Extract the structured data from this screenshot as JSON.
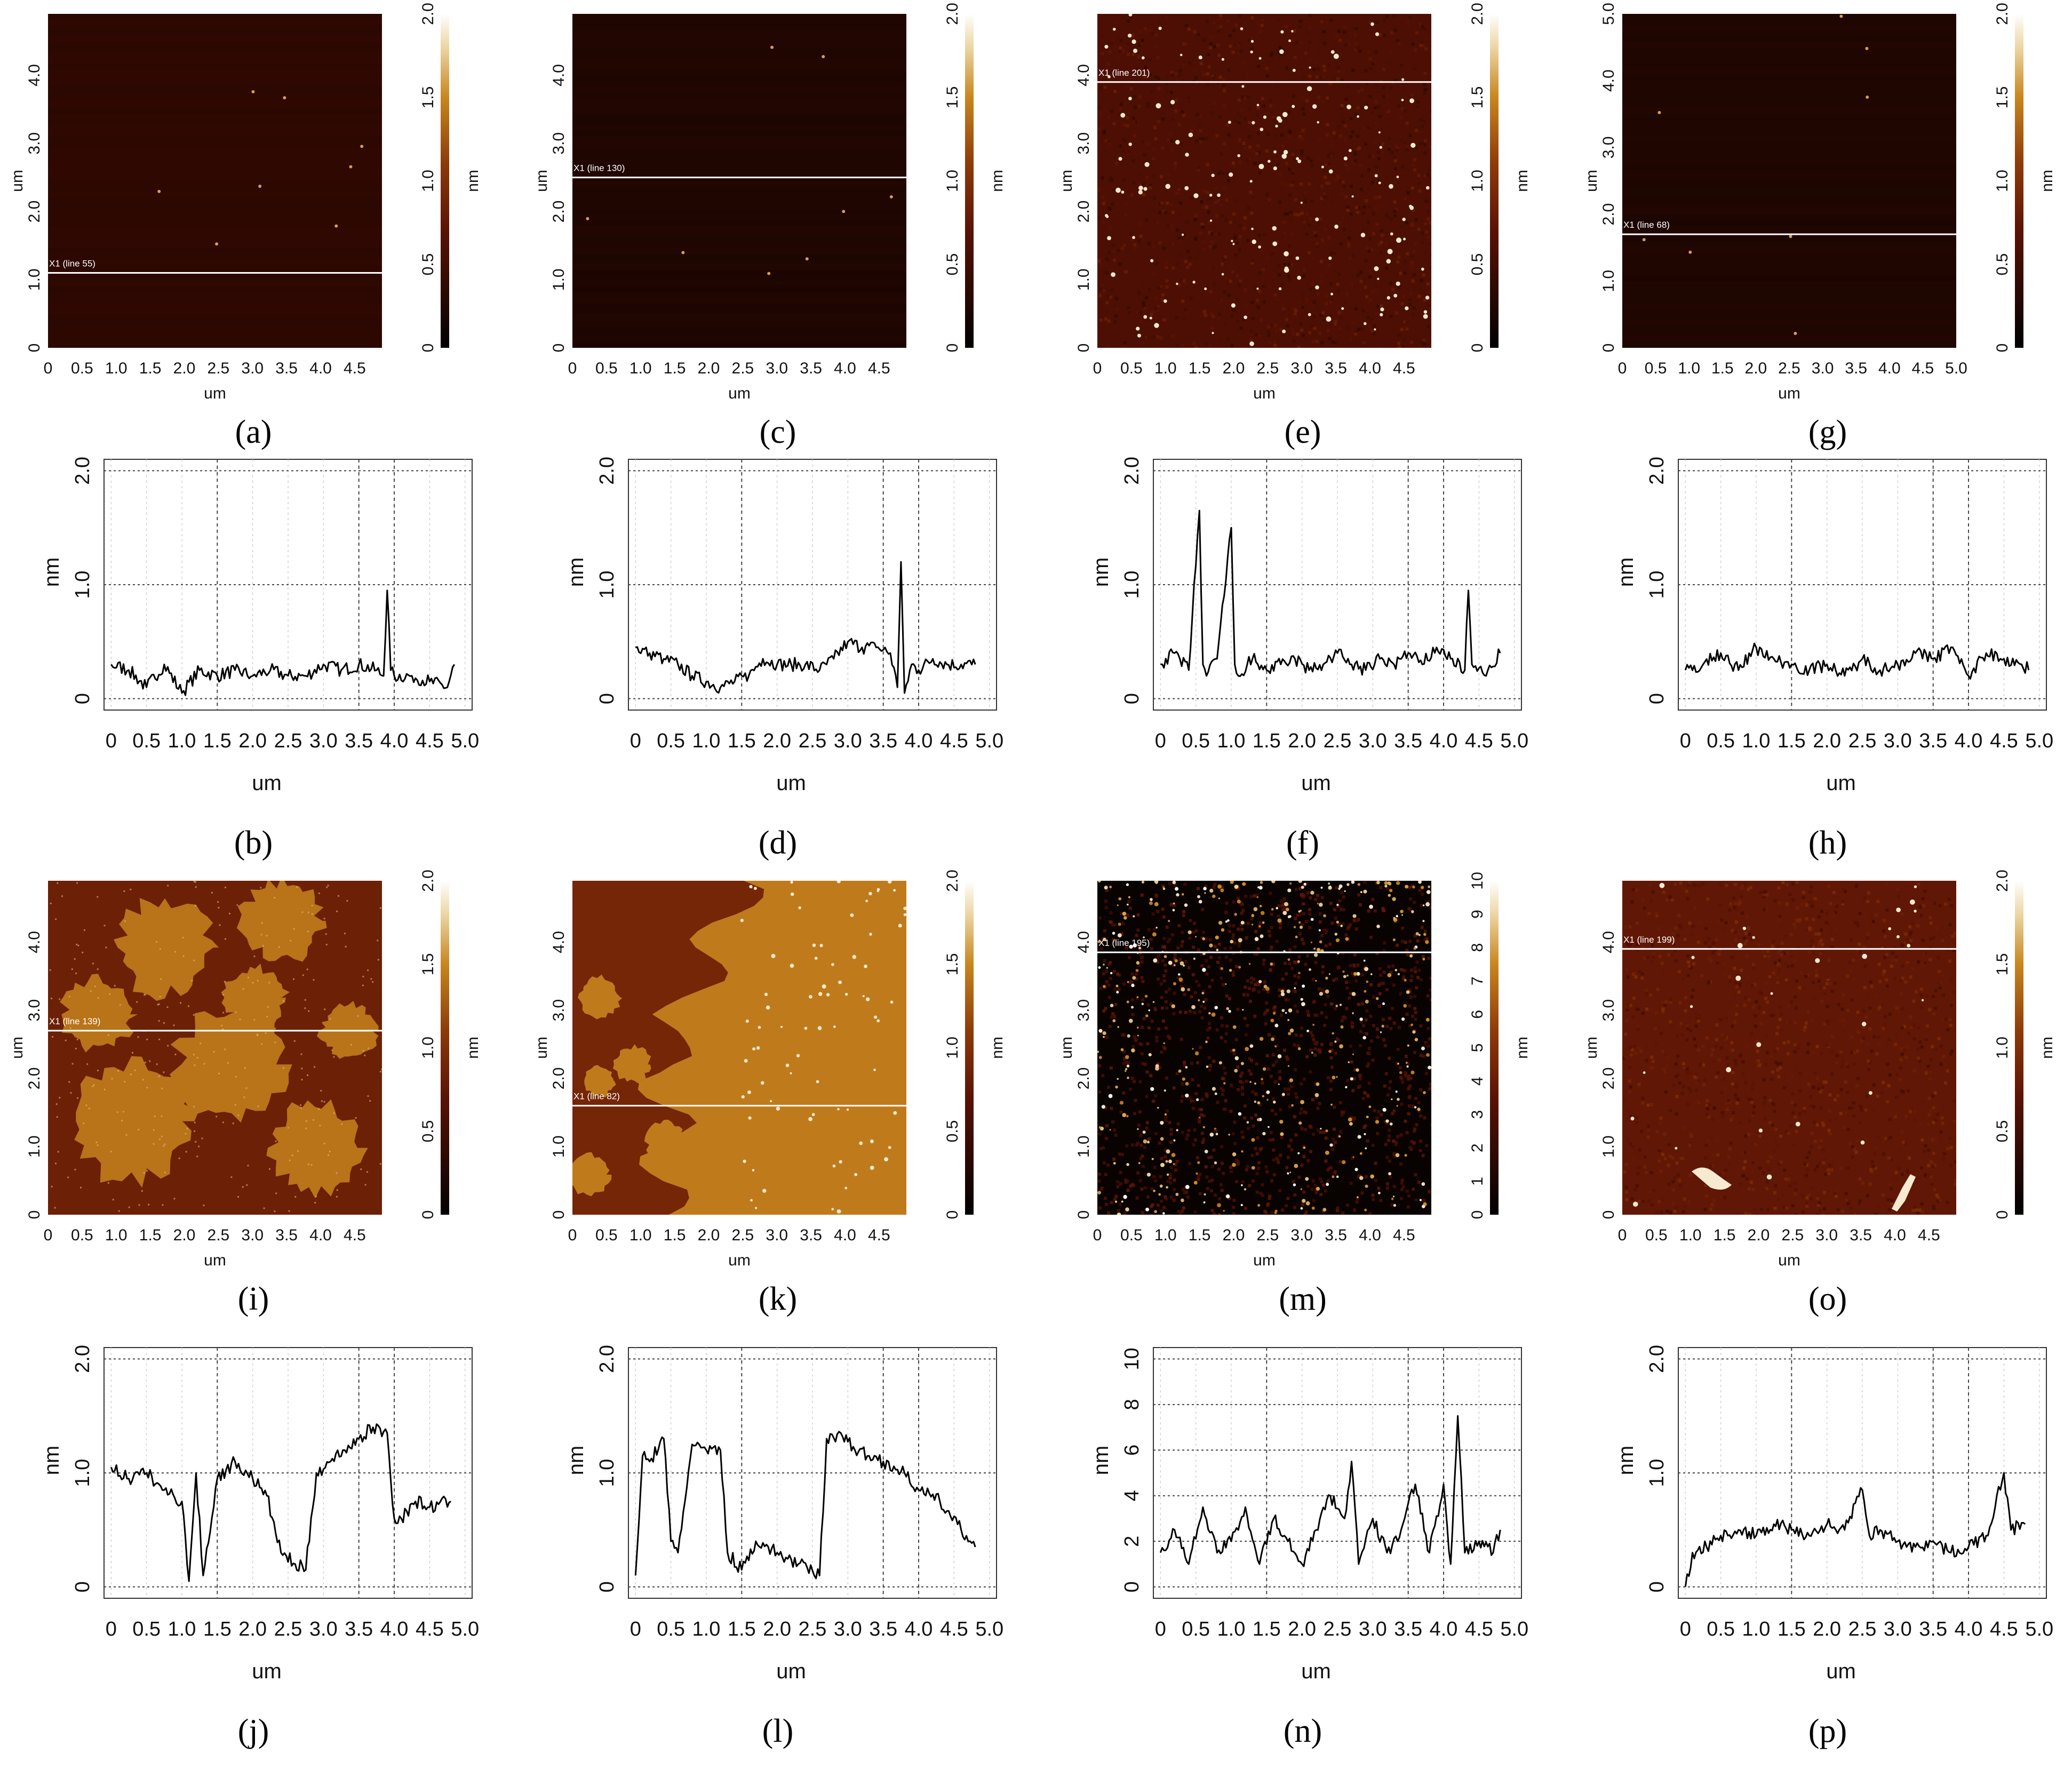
{
  "colors": {
    "afm_low": "#000000",
    "afm_mid": "#7a1f07",
    "afm_high": "#ffffff",
    "line": "#000000",
    "grid": "#555555"
  },
  "chart_data": [
    {
      "type": "heatmap",
      "panel": "a",
      "caption": "(a)",
      "xlabel": "um",
      "ylabel": "um",
      "colorbar_unit": "nm",
      "x_ticks": [
        "0",
        "0.5",
        "1.0",
        "1.5",
        "2.0",
        "2.5",
        "3.0",
        "3.5",
        "4.0",
        "4.5"
      ],
      "y_ticks": [
        "0",
        "1.0",
        "2.0",
        "3.0",
        "4.0"
      ],
      "colorbar_ticks": [
        "0",
        "0.5",
        "1.0",
        "1.5",
        "2.0"
      ],
      "zrange": [
        0,
        2
      ],
      "scan_line_label": "X1 (line 55)",
      "scan_line_y": 1.1,
      "texture": "smooth",
      "mean_height": 0.35
    },
    {
      "type": "line",
      "panel": "b",
      "caption": "(b)",
      "xlabel": "um",
      "ylabel": "nm",
      "x_ticks": [
        "0",
        "0.5",
        "1.0",
        "1.5",
        "2.0",
        "2.5",
        "3.0",
        "3.5",
        "4.0",
        "4.5",
        "5.0"
      ],
      "y_ticks": [
        "0",
        "1.0",
        "2.0"
      ],
      "ylim": [
        0,
        2.0
      ],
      "xlim": [
        -0.1,
        5.1
      ],
      "x_gridlines": [
        1.5,
        3.5,
        4.0
      ],
      "x": [
        0,
        0.25,
        0.5,
        0.75,
        1.0,
        1.25,
        1.5,
        1.75,
        2.0,
        2.25,
        2.5,
        2.75,
        3.0,
        3.25,
        3.5,
        3.75,
        3.85,
        3.9,
        3.95,
        4.0,
        4.25,
        4.5,
        4.75,
        4.85
      ],
      "y": [
        0.3,
        0.25,
        0.1,
        0.3,
        0.05,
        0.25,
        0.2,
        0.25,
        0.2,
        0.25,
        0.2,
        0.2,
        0.3,
        0.25,
        0.3,
        0.25,
        0.2,
        0.95,
        0.25,
        0.2,
        0.2,
        0.15,
        0.1,
        0.3
      ]
    },
    {
      "type": "heatmap",
      "panel": "c",
      "caption": "(c)",
      "xlabel": "um",
      "ylabel": "um",
      "colorbar_unit": "nm",
      "x_ticks": [
        "0",
        "0.5",
        "1.0",
        "1.5",
        "2.0",
        "2.5",
        "3.0",
        "3.5",
        "4.0",
        "4.5"
      ],
      "y_ticks": [
        "0",
        "1.0",
        "2.0",
        "3.0",
        "4.0"
      ],
      "colorbar_ticks": [
        "0",
        "0.5",
        "1.0",
        "1.5",
        "2.0"
      ],
      "zrange": [
        0,
        2
      ],
      "scan_line_label": "X1 (line 130)",
      "scan_line_y": 2.5,
      "texture": "smooth",
      "mean_height": 0.25
    },
    {
      "type": "line",
      "panel": "d",
      "caption": "(d)",
      "xlabel": "um",
      "ylabel": "nm",
      "x_ticks": [
        "0",
        "0.5",
        "1.0",
        "1.5",
        "2.0",
        "2.5",
        "3.0",
        "3.5",
        "4.0",
        "4.5",
        "5.0"
      ],
      "y_ticks": [
        "0",
        "1.0",
        "2.0"
      ],
      "ylim": [
        0,
        2.0
      ],
      "xlim": [
        -0.1,
        5.1
      ],
      "x_gridlines": [
        1.5,
        3.5,
        4.0
      ],
      "x": [
        0,
        0.2,
        0.4,
        0.6,
        0.8,
        1.0,
        1.2,
        1.4,
        1.6,
        1.8,
        2.0,
        2.2,
        2.4,
        2.6,
        2.8,
        3.0,
        3.2,
        3.4,
        3.6,
        3.7,
        3.75,
        3.8,
        3.9,
        4.0,
        4.2,
        4.4,
        4.6,
        4.8
      ],
      "y": [
        0.45,
        0.4,
        0.35,
        0.3,
        0.2,
        0.15,
        0.1,
        0.15,
        0.2,
        0.35,
        0.3,
        0.3,
        0.3,
        0.25,
        0.35,
        0.5,
        0.45,
        0.45,
        0.4,
        0.1,
        1.2,
        0.05,
        0.3,
        0.25,
        0.35,
        0.3,
        0.3,
        0.3
      ]
    },
    {
      "type": "heatmap",
      "panel": "e",
      "caption": "(e)",
      "xlabel": "um",
      "ylabel": "um",
      "colorbar_unit": "nm",
      "x_ticks": [
        "0",
        "0.5",
        "1.0",
        "1.5",
        "2.0",
        "2.5",
        "3.0",
        "3.5",
        "4.0",
        "4.5"
      ],
      "y_ticks": [
        "0",
        "1.0",
        "2.0",
        "3.0",
        "4.0"
      ],
      "colorbar_ticks": [
        "0",
        "0.5",
        "1.0",
        "1.5",
        "2.0"
      ],
      "zrange": [
        0,
        2
      ],
      "scan_line_label": "X1 (line 201)",
      "scan_line_y": 3.9,
      "texture": "grainy",
      "mean_height": 0.6
    },
    {
      "type": "line",
      "panel": "f",
      "caption": "(f)",
      "xlabel": "um",
      "ylabel": "nm",
      "x_ticks": [
        "0",
        "0.5",
        "1.0",
        "1.5",
        "2.0",
        "2.5",
        "3.0",
        "3.5",
        "4.0",
        "4.5",
        "5.0"
      ],
      "y_ticks": [
        "0",
        "1.0",
        "2.0"
      ],
      "ylim": [
        0,
        2.0
      ],
      "xlim": [
        -0.1,
        5.1
      ],
      "x_gridlines": [
        1.5,
        3.5,
        4.0
      ],
      "x": [
        0,
        0.2,
        0.4,
        0.55,
        0.6,
        0.65,
        0.8,
        1.0,
        1.05,
        1.1,
        1.3,
        1.5,
        1.7,
        1.9,
        2.1,
        2.3,
        2.5,
        2.7,
        2.9,
        3.1,
        3.3,
        3.5,
        3.7,
        3.9,
        4.1,
        4.3,
        4.35,
        4.4,
        4.6,
        4.8
      ],
      "y": [
        0.3,
        0.4,
        0.25,
        1.65,
        0.3,
        0.2,
        0.35,
        1.5,
        0.3,
        0.2,
        0.35,
        0.25,
        0.3,
        0.35,
        0.25,
        0.3,
        0.4,
        0.3,
        0.25,
        0.35,
        0.3,
        0.4,
        0.3,
        0.45,
        0.35,
        0.25,
        0.95,
        0.3,
        0.2,
        0.4
      ]
    },
    {
      "type": "heatmap",
      "panel": "g",
      "caption": "(g)",
      "xlabel": "um",
      "ylabel": "um",
      "colorbar_unit": "nm",
      "x_ticks": [
        "0",
        "0.5",
        "1.0",
        "1.5",
        "2.0",
        "2.5",
        "3.0",
        "3.5",
        "4.0",
        "4.5",
        "5.0"
      ],
      "y_ticks": [
        "0",
        "1.0",
        "2.0",
        "3.0",
        "4.0",
        "5.0"
      ],
      "colorbar_ticks": [
        "0",
        "0.5",
        "1.0",
        "1.5",
        "2.0"
      ],
      "zrange": [
        0,
        2
      ],
      "scan_line_label": "X1 (line 68)",
      "scan_line_y": 1.7,
      "texture": "smooth",
      "mean_height": 0.25
    },
    {
      "type": "line",
      "panel": "h",
      "caption": "(h)",
      "xlabel": "um",
      "ylabel": "nm",
      "x_ticks": [
        "0",
        "0.5",
        "1.0",
        "1.5",
        "2.0",
        "2.5",
        "3.0",
        "3.5",
        "4.0",
        "4.5",
        "5.0"
      ],
      "y_ticks": [
        "0",
        "1.0",
        "2.0"
      ],
      "ylim": [
        0,
        2.0
      ],
      "xlim": [
        -0.1,
        5.1
      ],
      "x_gridlines": [
        1.5,
        3.5,
        4.0
      ],
      "x": [
        0,
        0.25,
        0.5,
        0.75,
        1.0,
        1.25,
        1.5,
        1.75,
        2.0,
        2.25,
        2.5,
        2.75,
        3.0,
        3.25,
        3.5,
        3.75,
        4.0,
        4.25,
        4.5,
        4.75,
        4.85
      ],
      "y": [
        0.25,
        0.3,
        0.4,
        0.25,
        0.45,
        0.35,
        0.3,
        0.25,
        0.3,
        0.2,
        0.35,
        0.25,
        0.3,
        0.4,
        0.35,
        0.45,
        0.2,
        0.4,
        0.35,
        0.3,
        0.25
      ]
    },
    {
      "type": "heatmap",
      "panel": "i",
      "caption": "(i)",
      "xlabel": "um",
      "ylabel": "um",
      "colorbar_unit": "nm",
      "x_ticks": [
        "0",
        "0.5",
        "1.0",
        "1.5",
        "2.0",
        "2.5",
        "3.0",
        "3.5",
        "4.0",
        "4.5"
      ],
      "y_ticks": [
        "0",
        "1.0",
        "2.0",
        "3.0",
        "4.0"
      ],
      "colorbar_ticks": [
        "0",
        "0.5",
        "1.0",
        "1.5",
        "2.0"
      ],
      "zrange": [
        0,
        2
      ],
      "scan_line_label": "X1 (line 139)",
      "scan_line_y": 2.7,
      "texture": "islands",
      "mean_height": 1.0
    },
    {
      "type": "line",
      "panel": "j",
      "caption": "(j)",
      "xlabel": "um",
      "ylabel": "nm",
      "x_ticks": [
        "0",
        "0.5",
        "1.0",
        "1.5",
        "2.0",
        "2.5",
        "3.0",
        "3.5",
        "4.0",
        "4.5",
        "5.0"
      ],
      "y_ticks": [
        "0",
        "1.0",
        "2.0"
      ],
      "ylim": [
        0,
        2.0
      ],
      "xlim": [
        -0.1,
        5.1
      ],
      "x_gridlines": [
        1.5,
        3.5,
        4.0
      ],
      "x": [
        0,
        0.25,
        0.5,
        0.75,
        1.0,
        1.1,
        1.2,
        1.3,
        1.5,
        1.75,
        2.0,
        2.2,
        2.4,
        2.6,
        2.75,
        2.9,
        3.1,
        3.3,
        3.5,
        3.7,
        3.9,
        4.0,
        4.1,
        4.3,
        4.5,
        4.8
      ],
      "y": [
        1.05,
        0.95,
        1.0,
        0.85,
        0.75,
        0.05,
        1.0,
        0.1,
        0.95,
        1.1,
        0.95,
        0.8,
        0.3,
        0.2,
        0.15,
        1.0,
        1.1,
        1.2,
        1.3,
        1.4,
        1.35,
        0.6,
        0.6,
        0.75,
        0.7,
        0.75
      ]
    },
    {
      "type": "heatmap",
      "panel": "k",
      "caption": "(k)",
      "xlabel": "um",
      "ylabel": "um",
      "colorbar_unit": "nm",
      "x_ticks": [
        "0",
        "0.5",
        "1.0",
        "1.5",
        "2.0",
        "2.5",
        "3.0",
        "3.5",
        "4.0",
        "4.5"
      ],
      "y_ticks": [
        "0",
        "1.0",
        "2.0",
        "3.0",
        "4.0"
      ],
      "colorbar_ticks": [
        "0",
        "0.5",
        "1.0",
        "1.5",
        "2.0"
      ],
      "zrange": [
        0,
        2
      ],
      "scan_line_label": "X1 (line 82)",
      "scan_line_y": 1.6,
      "texture": "terraces",
      "mean_height": 1.0
    },
    {
      "type": "line",
      "panel": "l",
      "caption": "(l)",
      "xlabel": "um",
      "ylabel": "nm",
      "x_ticks": [
        "0",
        "0.5",
        "1.0",
        "1.5",
        "2.0",
        "2.5",
        "3.0",
        "3.5",
        "4.0",
        "4.5",
        "5.0"
      ],
      "y_ticks": [
        "0",
        "1.0",
        "2.0"
      ],
      "ylim": [
        0,
        2.0
      ],
      "xlim": [
        -0.1,
        5.1
      ],
      "x_gridlines": [
        1.5,
        3.5,
        4.0
      ],
      "x": [
        0,
        0.1,
        0.2,
        0.4,
        0.5,
        0.6,
        0.8,
        1.0,
        1.2,
        1.3,
        1.5,
        1.7,
        2.0,
        2.3,
        2.6,
        2.7,
        2.9,
        3.1,
        3.3,
        3.5,
        3.8,
        4.0,
        4.3,
        4.6,
        4.8
      ],
      "y": [
        0.1,
        1.15,
        1.1,
        1.3,
        0.4,
        0.3,
        1.25,
        1.2,
        1.2,
        0.3,
        0.15,
        0.4,
        0.3,
        0.2,
        0.1,
        1.3,
        1.35,
        1.2,
        1.15,
        1.1,
        1.0,
        0.85,
        0.75,
        0.5,
        0.35
      ]
    },
    {
      "type": "heatmap",
      "panel": "m",
      "caption": "(m)",
      "xlabel": "um",
      "ylabel": "um",
      "colorbar_unit": "nm",
      "x_ticks": [
        "0",
        "0.5",
        "1.0",
        "1.5",
        "2.0",
        "2.5",
        "3.0",
        "3.5",
        "4.0",
        "4.5"
      ],
      "y_ticks": [
        "0",
        "1.0",
        "2.0",
        "3.0",
        "4.0"
      ],
      "colorbar_ticks": [
        "0",
        "1",
        "2",
        "3",
        "4",
        "5",
        "6",
        "7",
        "8",
        "9",
        "10"
      ],
      "zrange": [
        0,
        10
      ],
      "scan_line_label": "X1 (line 195)",
      "scan_line_y": 3.85,
      "texture": "particles",
      "mean_height": 0.3
    },
    {
      "type": "line",
      "panel": "n",
      "caption": "(n)",
      "xlabel": "um",
      "ylabel": "nm",
      "x_ticks": [
        "0",
        "0.5",
        "1.0",
        "1.5",
        "2.0",
        "2.5",
        "3.0",
        "3.5",
        "4.0",
        "4.5",
        "5.0"
      ],
      "y_ticks": [
        "0",
        "2",
        "4",
        "6",
        "8",
        "10"
      ],
      "ylim": [
        0,
        10
      ],
      "xlim": [
        -0.1,
        5.1
      ],
      "x_gridlines": [
        1.5,
        3.5,
        4.0
      ],
      "x": [
        0,
        0.2,
        0.4,
        0.6,
        0.8,
        1.0,
        1.2,
        1.4,
        1.6,
        1.8,
        2.0,
        2.2,
        2.4,
        2.6,
        2.7,
        2.8,
        3.0,
        3.2,
        3.4,
        3.6,
        3.8,
        4.0,
        4.1,
        4.2,
        4.3,
        4.5,
        4.7,
        4.8
      ],
      "y": [
        1.5,
        2.5,
        1.0,
        3.5,
        1.5,
        2.0,
        3.5,
        1.0,
        3.0,
        2.0,
        1.0,
        2.5,
        4.0,
        3.0,
        5.5,
        1.0,
        3.0,
        1.5,
        2.5,
        4.5,
        1.5,
        4.5,
        1.0,
        7.5,
        1.5,
        2.0,
        1.5,
        2.5
      ]
    },
    {
      "type": "heatmap",
      "panel": "o",
      "caption": "(o)",
      "xlabel": "um",
      "ylabel": "um",
      "colorbar_unit": "nm",
      "x_ticks": [
        "0",
        "0.5",
        "1.0",
        "1.5",
        "2.0",
        "2.5",
        "3.0",
        "3.5",
        "4.0",
        "4.5"
      ],
      "y_ticks": [
        "0",
        "1.0",
        "2.0",
        "3.0",
        "4.0"
      ],
      "colorbar_ticks": [
        "0",
        "0.5",
        "1.0",
        "1.5",
        "2.0"
      ],
      "zrange": [
        0,
        2
      ],
      "scan_line_label": "X1 (line 199)",
      "scan_line_y": 3.9,
      "texture": "grainy-light",
      "mean_height": 0.75
    },
    {
      "type": "line",
      "panel": "p",
      "caption": "(p)",
      "xlabel": "um",
      "ylabel": "nm",
      "x_ticks": [
        "0",
        "0.5",
        "1.0",
        "1.5",
        "2.0",
        "2.5",
        "3.0",
        "3.5",
        "4.0",
        "4.5",
        "5.0"
      ],
      "y_ticks": [
        "0",
        "1.0",
        "2.0"
      ],
      "ylim": [
        0,
        2.0
      ],
      "xlim": [
        -0.1,
        5.1
      ],
      "x_gridlines": [
        1.5,
        3.5,
        4.0
      ],
      "x": [
        0,
        0.1,
        0.3,
        0.5,
        0.75,
        1.0,
        1.25,
        1.5,
        1.75,
        2.0,
        2.25,
        2.5,
        2.6,
        2.75,
        3.0,
        3.25,
        3.5,
        3.75,
        4.0,
        4.25,
        4.5,
        4.6,
        4.8
      ],
      "y": [
        0.0,
        0.3,
        0.35,
        0.45,
        0.5,
        0.45,
        0.55,
        0.5,
        0.45,
        0.55,
        0.5,
        0.85,
        0.45,
        0.5,
        0.4,
        0.35,
        0.4,
        0.3,
        0.35,
        0.45,
        1.0,
        0.5,
        0.55
      ]
    }
  ]
}
